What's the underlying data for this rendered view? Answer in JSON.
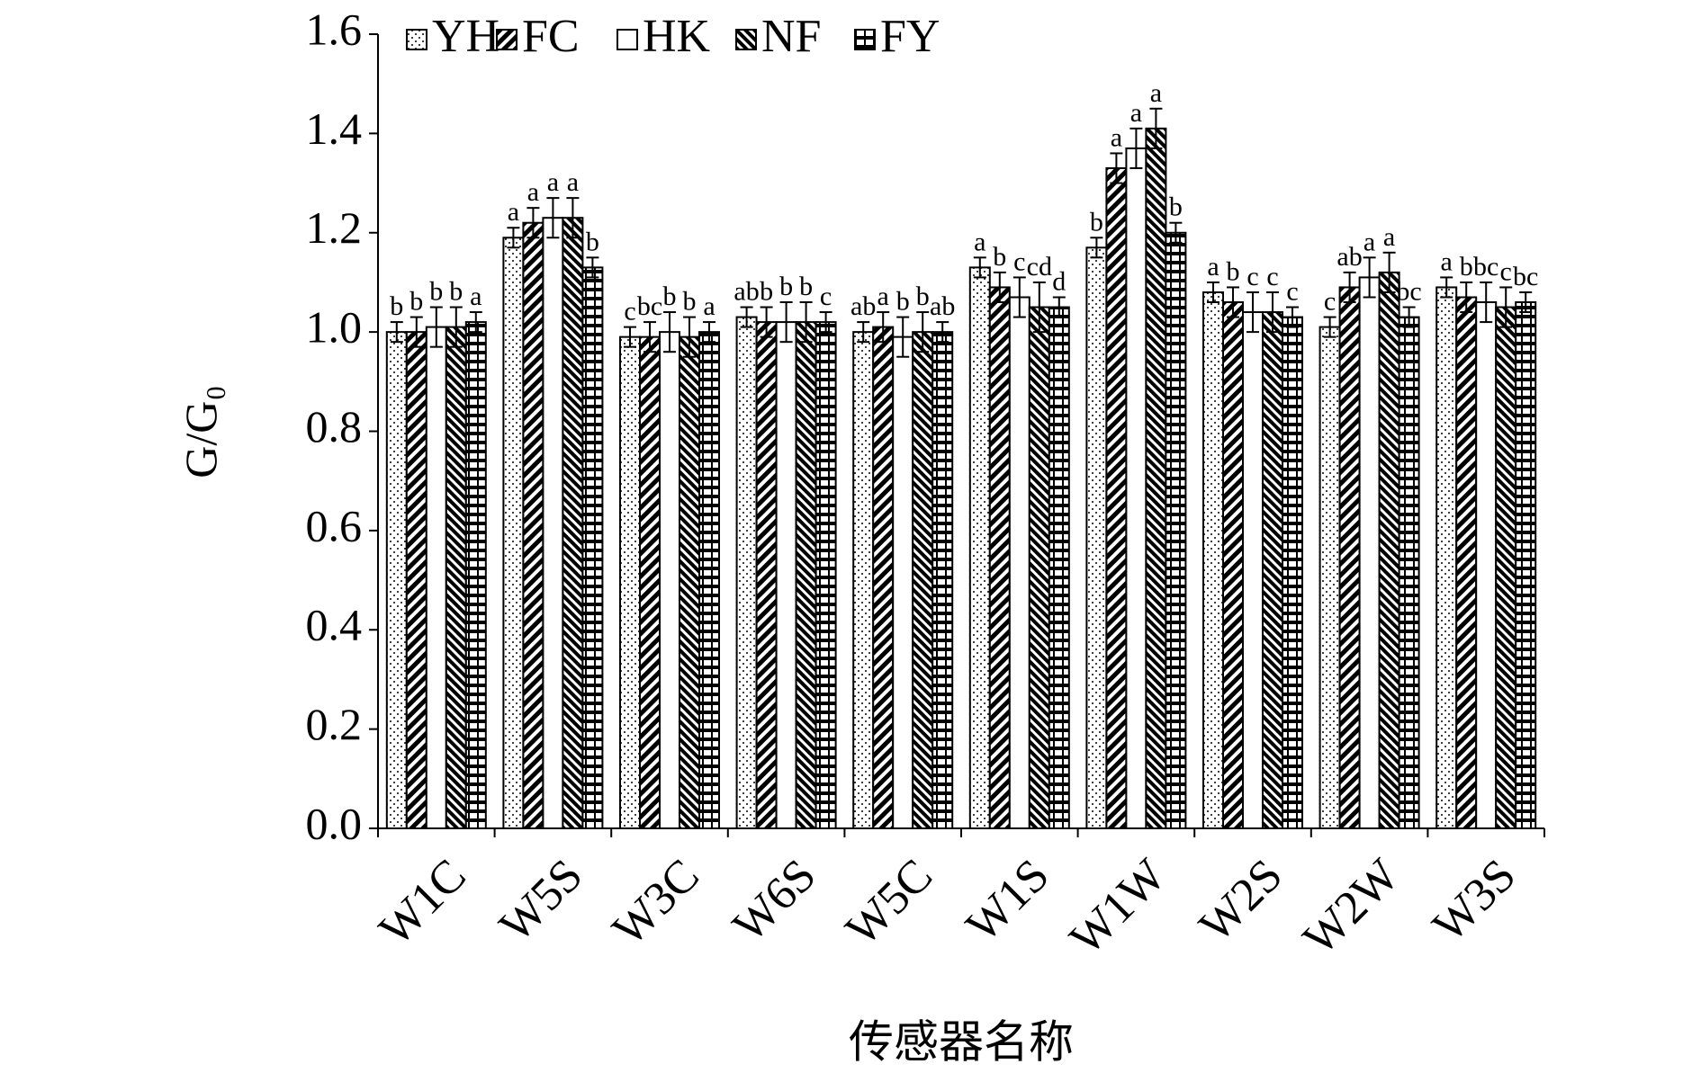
{
  "chart_data": {
    "type": "bar",
    "y_label": "G/G₀",
    "x_label": "传感器名称",
    "categories": [
      "W1C",
      "W5S",
      "W3C",
      "W6S",
      "W5C",
      "W1S",
      "W1W",
      "W2S",
      "W2W",
      "W3S"
    ],
    "series": [
      {
        "name": "YH",
        "color": "#000000",
        "values": [
          1.0,
          1.19,
          0.99,
          1.03,
          1.0,
          1.13,
          1.17,
          1.08,
          1.01,
          1.09
        ],
        "errors": [
          0.02,
          0.02,
          0.02,
          0.02,
          0.02,
          0.02,
          0.02,
          0.02,
          0.02,
          0.02
        ],
        "letters": [
          "b",
          "a",
          "c",
          "ab",
          "ab",
          "a",
          "b",
          "a",
          "c",
          "a"
        ]
      },
      {
        "name": "FC",
        "color": "#000000",
        "values": [
          1.0,
          1.22,
          0.99,
          1.02,
          1.01,
          1.09,
          1.33,
          1.06,
          1.09,
          1.07
        ],
        "errors": [
          0.03,
          0.03,
          0.03,
          0.03,
          0.03,
          0.03,
          0.03,
          0.03,
          0.03,
          0.03
        ],
        "letters": [
          "b",
          "a",
          "bc",
          "b",
          "a",
          "b",
          "a",
          "b",
          "ab",
          "b"
        ]
      },
      {
        "name": "HK",
        "color": "#000000",
        "values": [
          1.01,
          1.23,
          1.0,
          1.02,
          0.99,
          1.07,
          1.37,
          1.04,
          1.11,
          1.06
        ],
        "errors": [
          0.04,
          0.04,
          0.04,
          0.04,
          0.04,
          0.04,
          0.04,
          0.04,
          0.04,
          0.04
        ],
        "letters": [
          "b",
          "a",
          "b",
          "b",
          "b",
          "c",
          "a",
          "c",
          "a",
          "bc"
        ]
      },
      {
        "name": "NF",
        "color": "#000000",
        "values": [
          1.01,
          1.23,
          0.99,
          1.02,
          1.0,
          1.05,
          1.41,
          1.04,
          1.12,
          1.05
        ],
        "errors": [
          0.04,
          0.04,
          0.04,
          0.04,
          0.04,
          0.05,
          0.04,
          0.04,
          0.04,
          0.04
        ],
        "letters": [
          "b",
          "a",
          "b",
          "b",
          "b",
          "cd",
          "a",
          "c",
          "a",
          "c"
        ]
      },
      {
        "name": "FY",
        "color": "#000000",
        "values": [
          1.02,
          1.13,
          1.0,
          1.02,
          1.0,
          1.05,
          1.2,
          1.03,
          1.03,
          1.06
        ],
        "errors": [
          0.02,
          0.02,
          0.02,
          0.02,
          0.02,
          0.02,
          0.02,
          0.02,
          0.02,
          0.02
        ],
        "letters": [
          "a",
          "b",
          "a",
          "c",
          "ab",
          "d",
          "b",
          "c",
          "bc",
          "bc"
        ]
      }
    ],
    "ylim": [
      0,
      1.6
    ],
    "yticks": [
      {
        "value": 0,
        "label": "0.0"
      },
      0.2,
      0.4,
      0.6,
      0.8,
      {
        "value": 1,
        "label": "1.0"
      },
      1.2,
      1.4,
      1.6
    ],
    "legend": "top"
  }
}
